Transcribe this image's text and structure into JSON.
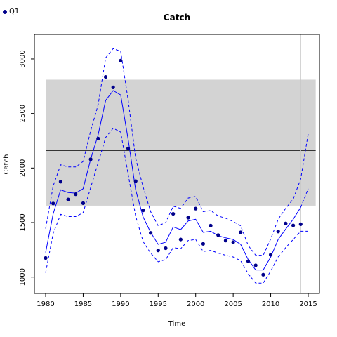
{
  "legend": {
    "label": "Q1",
    "color": "#00008b"
  },
  "chart_data": {
    "type": "line",
    "title": "Catch",
    "xlabel": "Time",
    "ylabel": "Catch",
    "xlim": [
      1978.5,
      2016.5
    ],
    "ylim": [
      850,
      3225
    ],
    "xticks": [
      1980,
      1985,
      1990,
      1995,
      2000,
      2005,
      2010,
      2015
    ],
    "yticks": [
      1000,
      1500,
      2000,
      2500,
      3000
    ],
    "grid": false,
    "legend_position": "top-left",
    "band": {
      "x0": 1980,
      "x1": 2016,
      "ylow": 1655,
      "yhigh": 2810,
      "color": "#d3d3d3"
    },
    "hline": {
      "y": 2160,
      "x0": 1980,
      "x1": 2016,
      "color": "#000000"
    },
    "vline": {
      "x": 2014,
      "color": "#c8c8c8"
    },
    "series": [
      {
        "name": "Q1",
        "kind": "points",
        "color": "#00008b",
        "x": [
          1980,
          1981,
          1982,
          1983,
          1984,
          1985,
          1986,
          1987,
          1988,
          1989,
          1990,
          1991,
          1992,
          1993,
          1994,
          1995,
          1996,
          1997,
          1998,
          1999,
          2000,
          2001,
          2002,
          2003,
          2004,
          2005,
          2006,
          2007,
          2008,
          2009,
          2010,
          2011,
          2012,
          2013,
          2014
        ],
        "y": [
          1175,
          1675,
          1875,
          1712,
          1760,
          1678,
          2080,
          2270,
          2835,
          2740,
          2985,
          2180,
          1880,
          1612,
          1405,
          1245,
          1265,
          1580,
          1345,
          1545,
          1628,
          1305,
          1472,
          1385,
          1335,
          1320,
          1410,
          1145,
          1108,
          1022,
          1205,
          1418,
          1492,
          1474,
          1485
        ]
      },
      {
        "kind": "line",
        "style": "solid",
        "color": "#0000ff",
        "x": [
          1980,
          1981,
          1982,
          1983,
          1984,
          1985,
          1986,
          1987,
          1988,
          1989,
          1990,
          1991,
          1992,
          1993,
          1994,
          1995,
          1996,
          1997,
          1998,
          1999,
          2000,
          2001,
          2002,
          2003,
          2004,
          2005,
          2006,
          2007,
          2008,
          2009,
          2010,
          2011,
          2012,
          2013,
          2014
        ],
        "y": [
          1225,
          1580,
          1800,
          1775,
          1770,
          1810,
          2080,
          2305,
          2620,
          2710,
          2670,
          2260,
          1800,
          1550,
          1410,
          1300,
          1320,
          1460,
          1435,
          1515,
          1530,
          1410,
          1420,
          1380,
          1360,
          1345,
          1300,
          1160,
          1065,
          1065,
          1185,
          1345,
          1440,
          1530,
          1640
        ]
      },
      {
        "kind": "line",
        "style": "dashed",
        "color": "#0000ff",
        "x": [
          1980,
          1981,
          1982,
          1983,
          1984,
          1985,
          1986,
          1987,
          1988,
          1989,
          1990,
          1991,
          1992,
          1993,
          1994,
          1995,
          1996,
          1997,
          1998,
          1999,
          2000,
          2001,
          2002,
          2003,
          2004,
          2005,
          2006,
          2007,
          2008,
          2009,
          2010,
          2011,
          2012,
          2013,
          2014,
          2015
        ],
        "y": [
          1445,
          1835,
          2030,
          2010,
          2010,
          2060,
          2340,
          2580,
          3010,
          3095,
          3070,
          2620,
          2090,
          1825,
          1600,
          1470,
          1500,
          1650,
          1630,
          1725,
          1740,
          1600,
          1610,
          1560,
          1540,
          1510,
          1470,
          1290,
          1200,
          1200,
          1350,
          1530,
          1630,
          1715,
          1900,
          2315
        ]
      },
      {
        "kind": "line",
        "style": "dashed",
        "color": "#0000ff",
        "x": [
          1980,
          1981,
          1982,
          1983,
          1984,
          1985,
          1986,
          1987,
          1988,
          1989,
          1990,
          1991,
          1992,
          1993,
          1994,
          1995,
          1996,
          1997,
          1998,
          1999,
          2000,
          2001,
          2002,
          2003,
          2004,
          2005,
          2006,
          2007,
          2008,
          2009,
          2010,
          2011,
          2012,
          2013,
          2014,
          2015
        ],
        "y": [
          1040,
          1400,
          1575,
          1555,
          1555,
          1590,
          1820,
          2050,
          2280,
          2365,
          2330,
          1940,
          1560,
          1325,
          1220,
          1140,
          1160,
          1270,
          1260,
          1335,
          1345,
          1235,
          1245,
          1220,
          1200,
          1185,
          1150,
          1030,
          945,
          945,
          1055,
          1185,
          1270,
          1345,
          1420,
          1420
        ]
      },
      {
        "kind": "line",
        "style": "dashed",
        "color": "#0000ff",
        "x": [
          2014,
          2015
        ],
        "y": [
          1640,
          1810
        ]
      }
    ]
  }
}
